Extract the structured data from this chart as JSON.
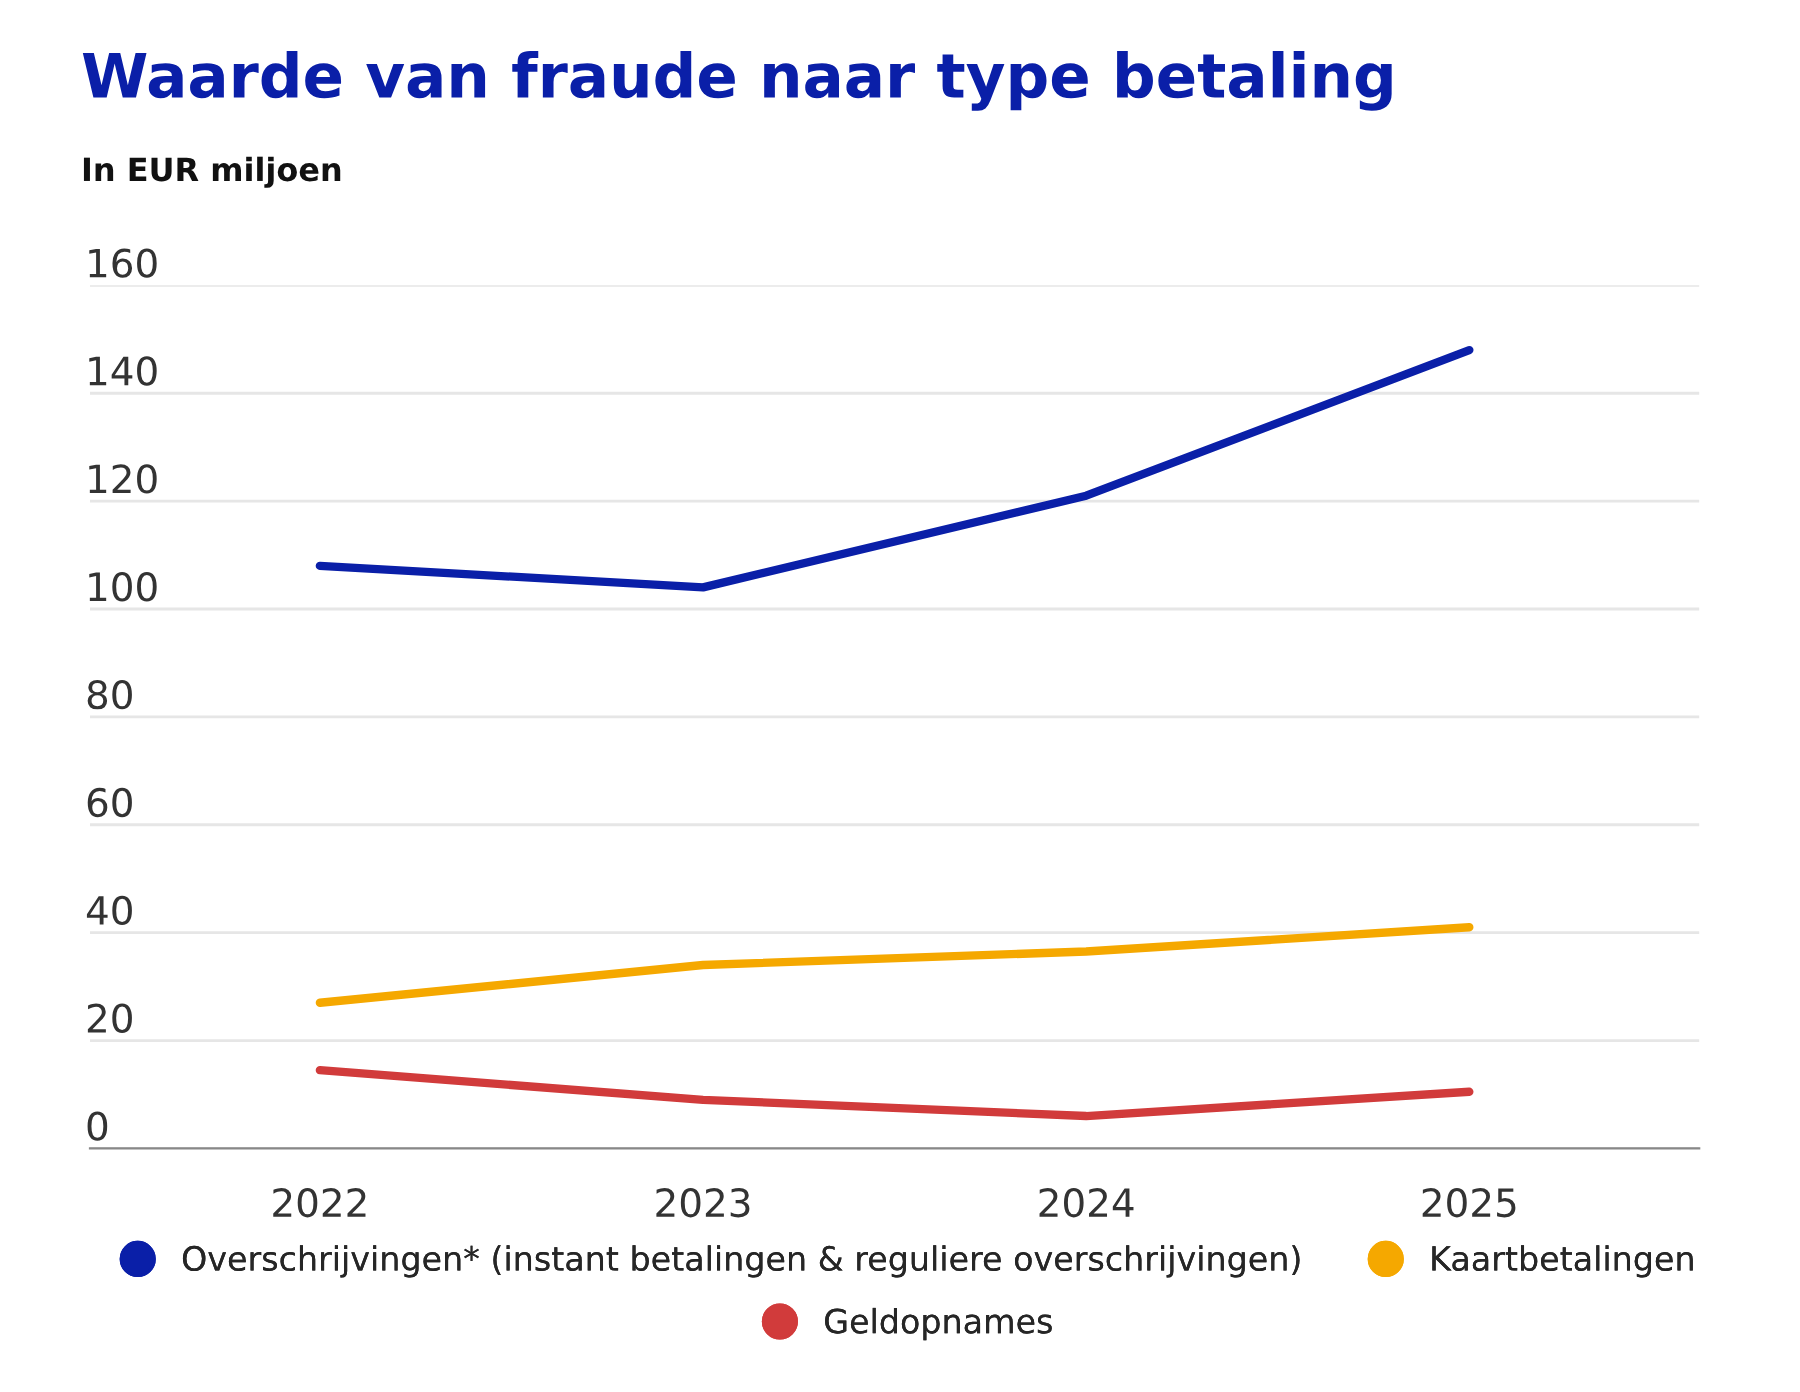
{
  "chart_data": {
    "type": "line",
    "title": "Waarde van fraude naar type betaling",
    "subtitle": "In EUR miljoen",
    "categories": [
      "2022",
      "2023",
      "2024",
      "2025"
    ],
    "series": [
      {
        "name": "Overschrijvingen* (instant betalingen & reguliere overschrijvingen)",
        "color": "#0a1fa8",
        "values": [
          108,
          104,
          121,
          148
        ]
      },
      {
        "name": "Kaartbetalingen",
        "color": "#f5a800",
        "values": [
          27,
          34,
          36.5,
          41
        ]
      },
      {
        "name": "Geldopnames",
        "color": "#d13b3b",
        "values": [
          14.5,
          9,
          6,
          10.5
        ]
      }
    ],
    "ylim": [
      0,
      160
    ],
    "yticks": [
      0,
      20,
      40,
      60,
      80,
      100,
      120,
      140,
      160
    ],
    "grid": "y",
    "legend": "bottom"
  }
}
